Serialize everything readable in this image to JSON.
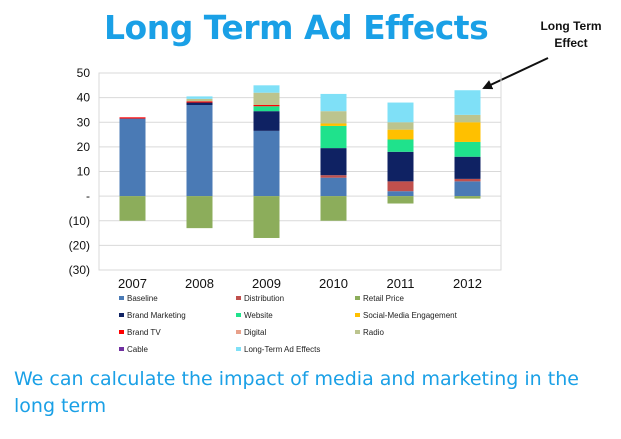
{
  "page": {
    "title": "Long Term Ad Effects",
    "callout": "Long Term Effect",
    "caption": "We can calculate the impact of media and marketing in the long term"
  },
  "chart_data": {
    "type": "bar",
    "stacked": true,
    "title": "",
    "xlabel": "",
    "ylabel": "",
    "ylim": [
      -30,
      50
    ],
    "yticks": [
      {
        "value": 50,
        "label": "50"
      },
      {
        "value": 40,
        "label": "40"
      },
      {
        "value": 30,
        "label": "30"
      },
      {
        "value": 20,
        "label": "20"
      },
      {
        "value": 10,
        "label": "10"
      },
      {
        "value": 0,
        "label": "-"
      },
      {
        "value": -10,
        "label": "(10)"
      },
      {
        "value": -20,
        "label": "(20)"
      },
      {
        "value": -30,
        "label": "(30)"
      }
    ],
    "grid": true,
    "legend_position": "bottom",
    "categories": [
      "2007",
      "2008",
      "2009",
      "2010",
      "2011",
      "2012"
    ],
    "series": [
      {
        "name": "Baseline",
        "color": "#4a7ab5",
        "values": [
          31.5,
          37,
          26.5,
          7.5,
          2,
          6
        ]
      },
      {
        "name": "Distribution",
        "color": "#c0504d",
        "values": [
          0,
          0,
          0,
          1,
          4,
          1
        ]
      },
      {
        "name": "Retail Price",
        "color": "#8cad5b",
        "values": [
          -10,
          -13,
          -17,
          -10,
          -3,
          -1
        ]
      },
      {
        "name": "Brand Marketing",
        "color": "#0f2263",
        "values": [
          0,
          1,
          8,
          11,
          12,
          9
        ]
      },
      {
        "name": "Website",
        "color": "#1fe28c",
        "values": [
          0,
          0,
          2,
          9,
          5,
          6
        ]
      },
      {
        "name": "Social-Media Engagement",
        "color": "#ffc000",
        "values": [
          0,
          0,
          0,
          1,
          4,
          8
        ]
      },
      {
        "name": "Brand TV",
        "color": "#ff0000",
        "values": [
          0.5,
          0.5,
          0.5,
          0,
          0,
          0
        ]
      },
      {
        "name": "Digital",
        "color": "#e8a08a",
        "values": [
          0,
          0,
          0,
          0,
          0,
          0
        ]
      },
      {
        "name": "Radio",
        "color": "#bcc48e",
        "values": [
          0,
          1,
          5,
          5,
          3,
          3
        ]
      },
      {
        "name": "Cable",
        "color": "#7030a0",
        "values": [
          0,
          0,
          0,
          0,
          0,
          0
        ]
      },
      {
        "name": "Long-Term Ad Effects",
        "color": "#7fe0f7",
        "values": [
          0,
          1,
          3,
          7,
          8,
          10
        ]
      }
    ]
  }
}
